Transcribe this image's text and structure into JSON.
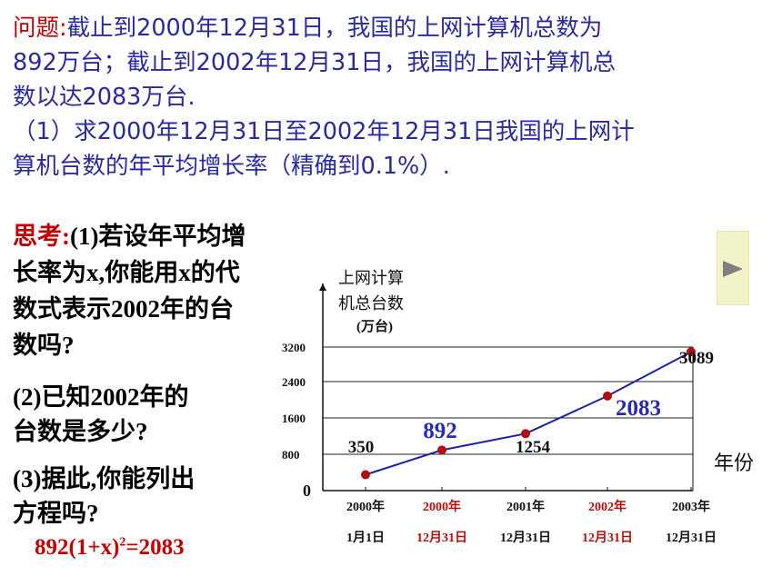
{
  "problem": {
    "lead": "问题:",
    "line1_rest": "截止到2000年12月31日，我国的上网计算机总数为",
    "line2": "892万台；截止到2002年12月31日，我国的上网计算机总",
    "line3": "数以达2083万台.",
    "line4": "（1）求2000年12月31日至2002年12月31日我国的上网计",
    "line5": "算机台数的年平均增长率（精确到0.1%）."
  },
  "think": {
    "lead": "思考:",
    "line1_rest": "(1)若设年平均增",
    "line2": "长率为x,你能用x的代",
    "line3": "数式表示2002年的台",
    "line4": "数吗?"
  },
  "q2": {
    "line1": "(2)已知2002年的",
    "line2": "台数是多少?"
  },
  "q3": {
    "line1": "(3)据此,你能列出",
    "line2": "方程吗?"
  },
  "equation": {
    "base": "892(1+x)",
    "exp": "2",
    "rhs": "=2083"
  },
  "controls": {
    "play_icon": "play-triangle-icon",
    "play_color": "#808080",
    "play_bg": "#f2f2c8"
  },
  "chart_data": {
    "type": "line",
    "ylabel_line1": "上网计算",
    "ylabel_line2": "机总台数",
    "ylabel_line3": "(万台)",
    "xlabel": "年份",
    "yticks": [
      "0",
      "800",
      "1600",
      "2400",
      "3200"
    ],
    "ylim": [
      0,
      3200
    ],
    "grid": "horizontal at 800, 1600, 2400, 3200 (2400 line at 3200-label)",
    "categories": [
      {
        "year": "2000年",
        "date": "1月1日",
        "highlight": false
      },
      {
        "year": "2000年",
        "date": "12月31日",
        "highlight": true
      },
      {
        "year": "2001年",
        "date": "12月31日",
        "highlight": false
      },
      {
        "year": "2002年",
        "date": "12月31日",
        "highlight": true
      },
      {
        "year": "2003年",
        "date": "12月31日",
        "highlight": false
      }
    ],
    "series": [
      {
        "values": [
          350,
          892,
          1254,
          2083,
          3089
        ]
      }
    ],
    "point_labels": [
      "350",
      "892",
      "1254",
      "2083",
      "3089"
    ],
    "point_label_highlight": [
      false,
      true,
      false,
      true,
      false
    ],
    "colors": {
      "line": "#1f1fa8",
      "point": "#b01010",
      "highlight_text": "#2a2ab0",
      "highlight_date": "#b01010"
    }
  }
}
